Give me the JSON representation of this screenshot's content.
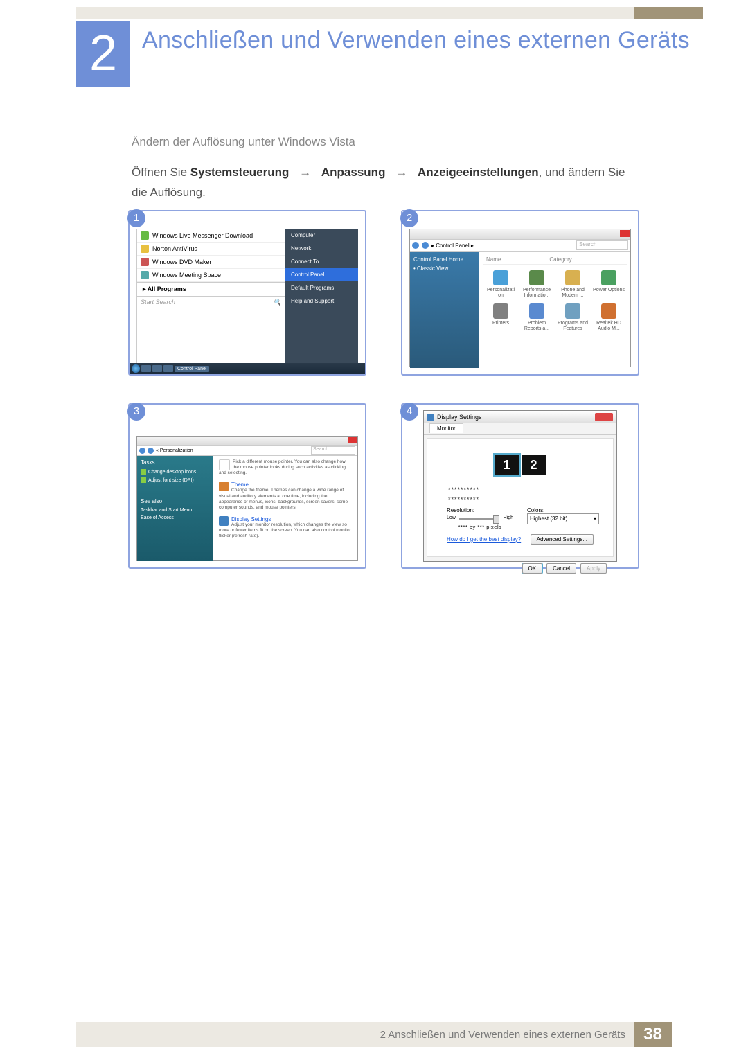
{
  "chapter_number": "2",
  "title": "Anschließen und Verwenden eines externen Geräts",
  "subtitle": "Ändern der Auflösung unter Windows Vista",
  "para_pre": "Öffnen Sie ",
  "para_b1": "Systemsteuerung",
  "para_b2": "Anpassung",
  "para_b3": "Anzeigeeinstellungen",
  "para_post": ", und ändern Sie die Auflösung.",
  "arrow": "→",
  "badges": {
    "b1": "1",
    "b2": "2",
    "b3": "3",
    "b4": "4"
  },
  "panel1": {
    "items": [
      {
        "label": "Windows Live Messenger Download",
        "color": "#6b4"
      },
      {
        "label": "Norton AntiVirus",
        "color": "#e8c040"
      },
      {
        "label": "Windows DVD Maker",
        "color": "#c55"
      },
      {
        "label": "Windows Meeting Space",
        "color": "#5aa"
      }
    ],
    "allprograms": "All Programs",
    "search": "Start Search",
    "right": [
      {
        "t": "Computer",
        "hl": false
      },
      {
        "t": "Network",
        "hl": false
      },
      {
        "t": "Connect To",
        "hl": false
      },
      {
        "t": "Control Panel",
        "hl": true
      },
      {
        "t": "Default Programs",
        "hl": false
      },
      {
        "t": "Help and Support",
        "hl": false
      }
    ],
    "task_label": "Control Panel"
  },
  "panel2": {
    "breadcrumb": "▸ Control Panel ▸",
    "search": "Search",
    "side_home": "Control Panel Home",
    "side_classic": "Classic View",
    "hdr_name": "Name",
    "hdr_cat": "Category",
    "icons": [
      {
        "t": "Personalizati on",
        "c": "#4aa0d8"
      },
      {
        "t": "Performance Informatio...",
        "c": "#5a8a4a"
      },
      {
        "t": "Phone and Modem ...",
        "c": "#d8b050"
      },
      {
        "t": "Power Options",
        "c": "#4aa060"
      },
      {
        "t": "Printers",
        "c": "#808080"
      },
      {
        "t": "Problem Reports a...",
        "c": "#5a8ad0"
      },
      {
        "t": "Programs and Features",
        "c": "#70a0c0"
      },
      {
        "t": "Realtek HD Audio M...",
        "c": "#d07030"
      }
    ]
  },
  "panel3": {
    "breadcrumb": "« Personalization",
    "search": "Search",
    "side": {
      "tasks": "Tasks",
      "l1": "Change desktop icons",
      "l2": "Adjust font size (DPI)",
      "see": "See also",
      "l3": "Taskbar and Start Menu",
      "l4": "Ease of Access"
    },
    "sec0": {
      "text": "Pick a different mouse pointer. You can also change how the mouse pointer looks during such activities as clicking and selecting."
    },
    "sec1": {
      "title": "Theme",
      "c": "#d88030",
      "text": "Change the theme. Themes can change a wide range of visual and auditory elements at one time, including the appearance of menus, icons, backgrounds, screen savers, some computer sounds, and mouse pointers."
    },
    "sec2": {
      "title": "Display Settings",
      "c": "#4080c0",
      "text": "Adjust your monitor resolution, which changes the view so more or fewer items fit on the screen. You can also control monitor flicker (refresh rate)."
    }
  },
  "panel4": {
    "title": "Display Settings",
    "tab": "Monitor",
    "mon1": "1",
    "mon2": "2",
    "stars": "**********",
    "res": "Resolution:",
    "low": "Low",
    "high": "High",
    "px": "**** by *** pixels",
    "colors": "Colors:",
    "colval": "Highest (32 bit)",
    "link": "How do I get the best display?",
    "adv": "Advanced Settings...",
    "ok": "OK",
    "cancel": "Cancel",
    "apply": "Apply"
  },
  "footer": {
    "text": "2 Anschließen und Verwenden eines externen Geräts",
    "page": "38"
  }
}
